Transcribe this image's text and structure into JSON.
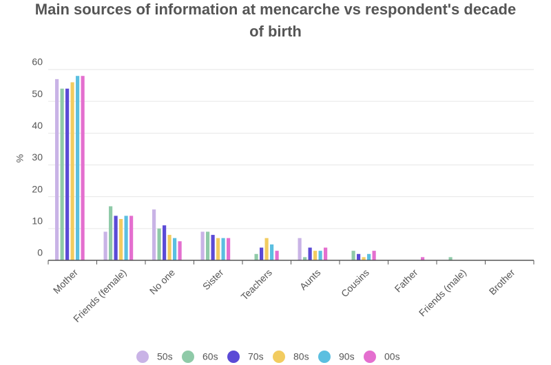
{
  "chart_data": {
    "type": "bar",
    "title": "Main sources of information at mencarche vs respondent's decade of birth",
    "y_label": "%",
    "categories": [
      "Mother",
      "Friends (female)",
      "No one",
      "Sister",
      "Teachers",
      "Aunts",
      "Cousins",
      "Father",
      "Friends (male)",
      "Brother"
    ],
    "series": [
      {
        "name": "50s",
        "color": "#c9b3e6",
        "values": [
          57,
          9,
          16,
          9,
          0,
          7,
          0,
          0,
          0,
          0
        ]
      },
      {
        "name": "60s",
        "color": "#8fcaa8",
        "values": [
          54,
          17,
          10,
          9,
          2,
          1,
          3,
          0,
          1,
          0
        ]
      },
      {
        "name": "70s",
        "color": "#5b4ad6",
        "values": [
          54,
          14,
          11,
          8,
          4,
          4,
          2,
          0,
          0,
          0
        ]
      },
      {
        "name": "80s",
        "color": "#f2cc60",
        "values": [
          56,
          13,
          8,
          7,
          7,
          3,
          1,
          0,
          0,
          0
        ]
      },
      {
        "name": "90s",
        "color": "#5bbfe0",
        "values": [
          58,
          14,
          7,
          7,
          5,
          3,
          2,
          0,
          0,
          0
        ]
      },
      {
        "name": "00s",
        "color": "#e46fcf",
        "values": [
          58,
          14,
          6,
          7,
          3,
          4,
          3,
          1,
          0,
          0
        ]
      }
    ],
    "ylim": [
      0,
      60
    ],
    "yticks": [
      0,
      10,
      20,
      30,
      40,
      50,
      60
    ],
    "grid": true
  }
}
